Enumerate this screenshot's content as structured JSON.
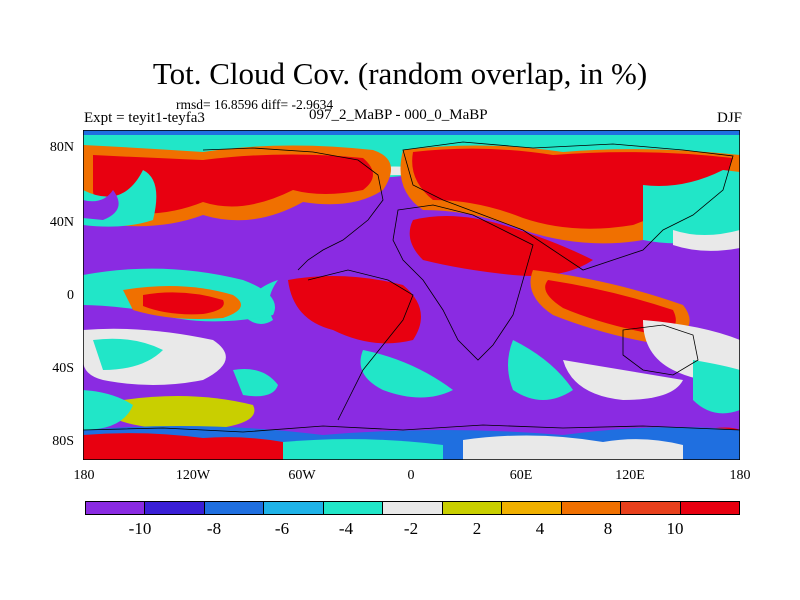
{
  "title": "Tot. Cloud Cov. (random overlap, in %)",
  "stats": "rmsd= 16.8596 diff= -2.9634",
  "experiment": "Expt = teyit1-teyfa3",
  "difference": "097_2_MaBP - 000_0_MaBP",
  "season": "DJF",
  "lat_labels": [
    "80N",
    "40N",
    "0",
    "40S",
    "80S"
  ],
  "lon_labels": [
    "180",
    "120W",
    "60W",
    "0",
    "60E",
    "120E",
    "180"
  ],
  "colorbar": {
    "colors": [
      "#8a2be2",
      "#3a1fd6",
      "#1f6fe0",
      "#1fb3e8",
      "#21e6c8",
      "#e9e9e9",
      "#c9cf00",
      "#f0b000",
      "#f07000",
      "#e8401c",
      "#e80010"
    ],
    "labels": [
      "-10",
      "-8",
      "-6",
      "-4",
      "-2",
      "2",
      "4",
      "8",
      "10"
    ]
  }
}
